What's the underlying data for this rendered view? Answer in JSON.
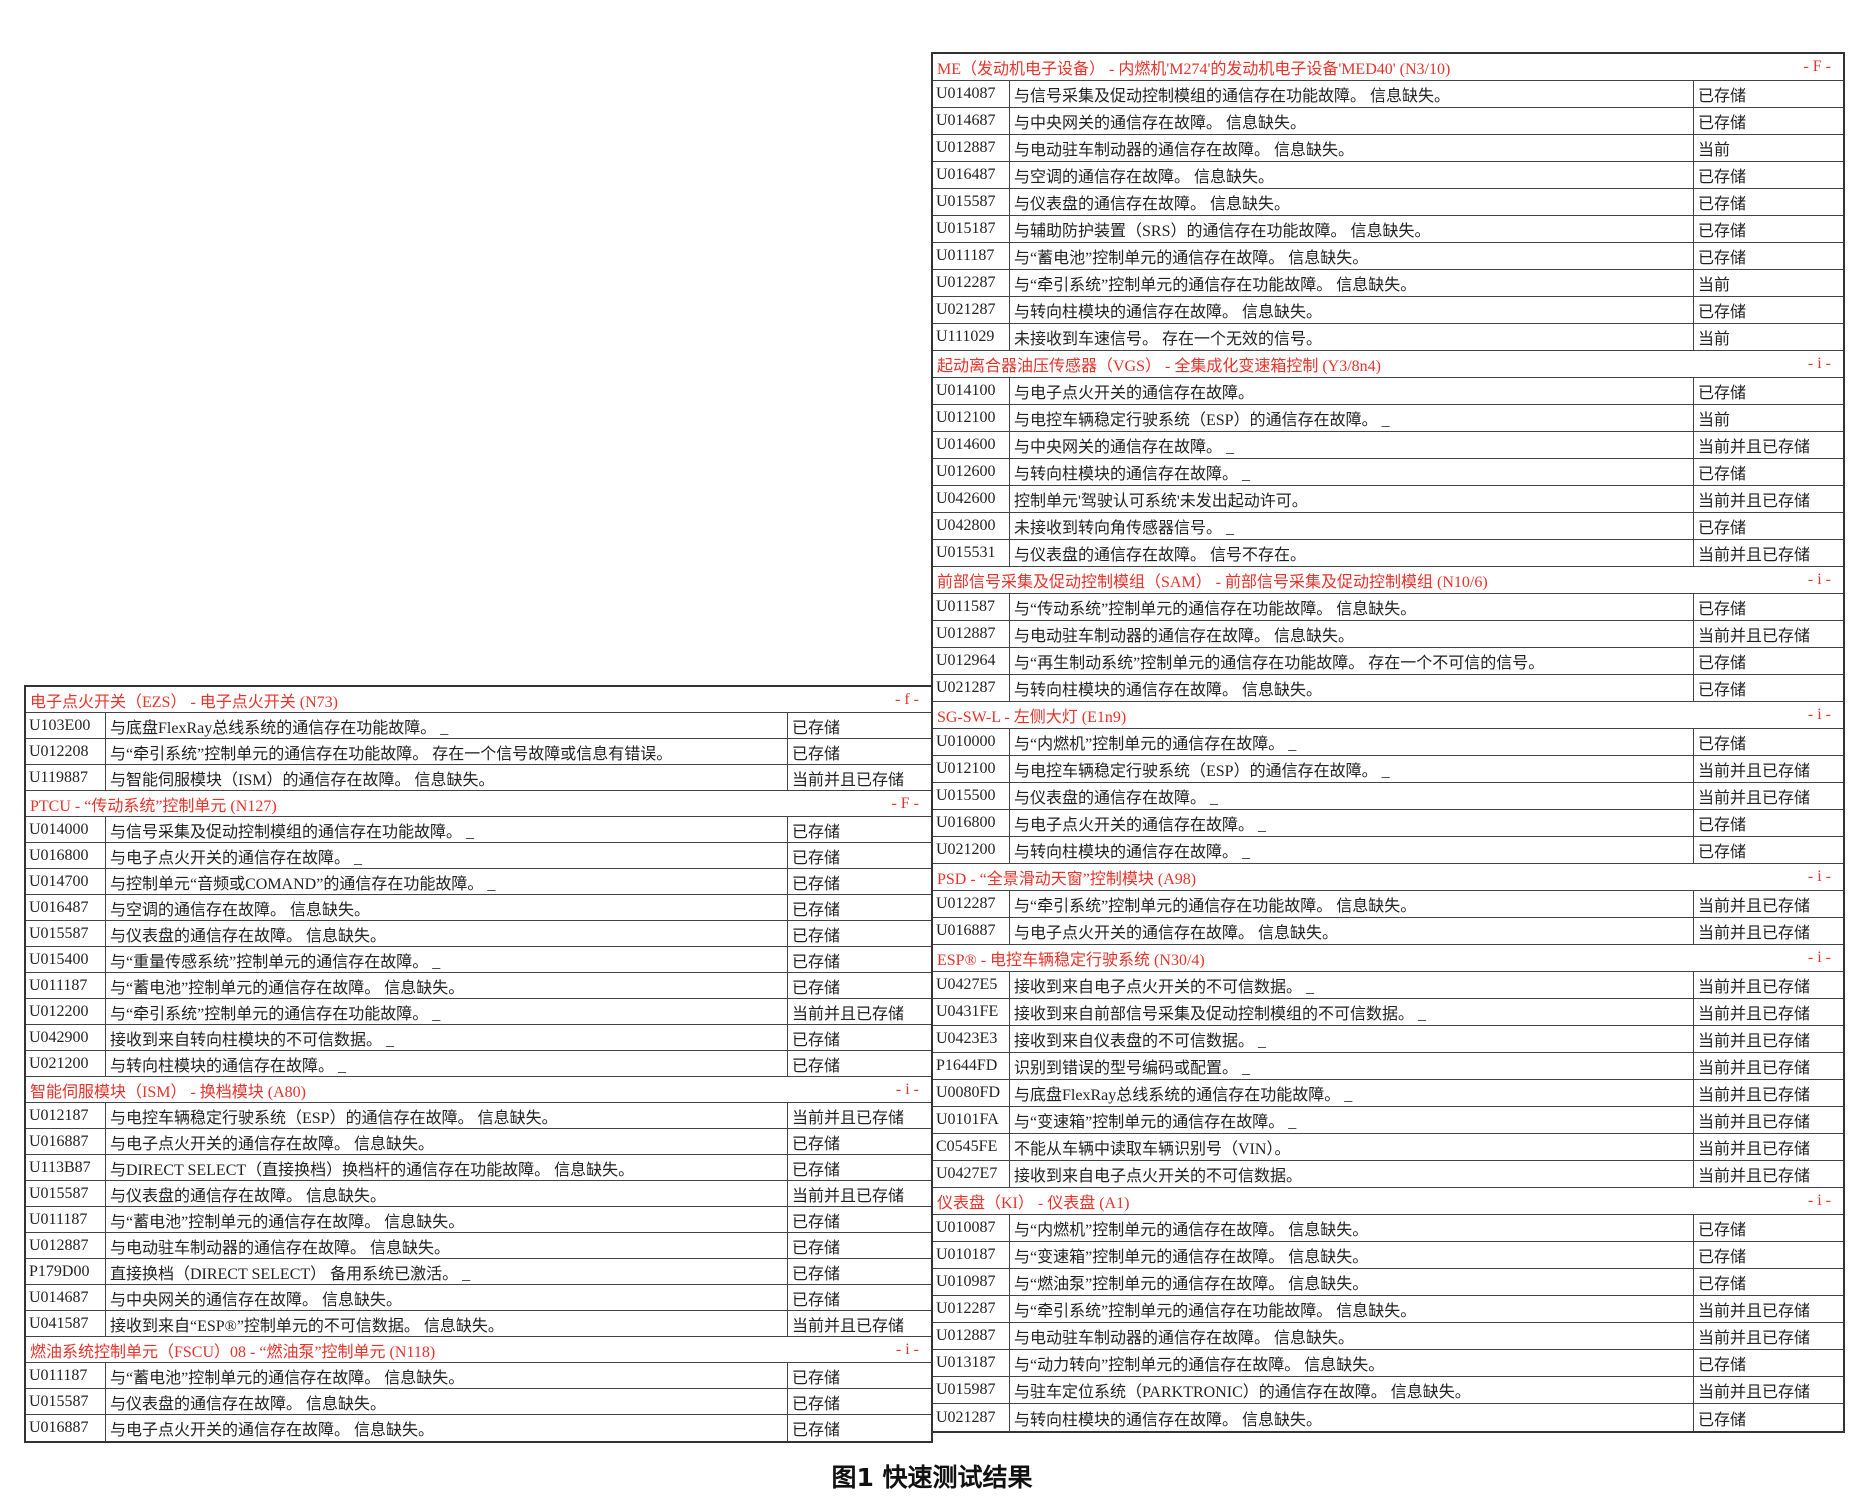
{
  "left": {
    "sections": [
      {
        "title": "电子点火开关（EZS） - 电子点火开关 (N73)",
        "flag": "- f -",
        "rows": [
          [
            "U103E00",
            "与底盘FlexRay总线系统的通信存在功能故障。 _",
            "已存储"
          ],
          [
            "U012208",
            "与“牵引系统”控制单元的通信存在功能故障。 存在一个信号故障或信息有错误。",
            "已存储"
          ],
          [
            "U119887",
            "与智能伺服模块（ISM）的通信存在故障。 信息缺失。",
            "当前并且已存储"
          ]
        ]
      },
      {
        "title": "PTCU - “传动系统”控制单元 (N127)",
        "flag": "- F -",
        "rows": [
          [
            "U014000",
            "与信号采集及促动控制模组的通信存在功能故障。 _",
            "已存储"
          ],
          [
            "U016800",
            "与电子点火开关的通信存在故障。 _",
            "已存储"
          ],
          [
            "U014700",
            "与控制单元“音频或COMAND”的通信存在功能故障。 _",
            "已存储"
          ],
          [
            "U016487",
            "与空调的通信存在故障。 信息缺失。",
            "已存储"
          ],
          [
            "U015587",
            "与仪表盘的通信存在故障。 信息缺失。",
            "已存储"
          ],
          [
            "U015400",
            "与“重量传感系统”控制单元的通信存在故障。 _",
            "已存储"
          ],
          [
            "U011187",
            "与“蓄电池”控制单元的通信存在故障。 信息缺失。",
            "已存储"
          ],
          [
            "U012200",
            "与“牵引系统”控制单元的通信存在功能故障。 _",
            "当前并且已存储"
          ],
          [
            "U042900",
            "接收到来自转向柱模块的不可信数据。 _",
            "已存储"
          ],
          [
            "U021200",
            "与转向柱模块的通信存在故障。 _",
            "已存储"
          ]
        ]
      },
      {
        "title": "智能伺服模块（ISM） - 换档模块 (A80)",
        "flag": "- i -",
        "rows": [
          [
            "U012187",
            "与电控车辆稳定行驶系统（ESP）的通信存在故障。 信息缺失。",
            "当前并且已存储"
          ],
          [
            "U016887",
            "与电子点火开关的通信存在故障。 信息缺失。",
            "已存储"
          ],
          [
            "U113B87",
            "与DIRECT SELECT（直接换档）换档杆的通信存在功能故障。 信息缺失。",
            "已存储"
          ],
          [
            "U015587",
            "与仪表盘的通信存在故障。 信息缺失。",
            "当前并且已存储"
          ],
          [
            "U011187",
            "与“蓄电池”控制单元的通信存在故障。 信息缺失。",
            "已存储"
          ],
          [
            "U012887",
            "与电动驻车制动器的通信存在故障。 信息缺失。",
            "已存储"
          ],
          [
            "P179D00",
            "直接换档（DIRECT SELECT） 备用系统已激活。 _",
            "已存储"
          ],
          [
            "U014687",
            "与中央网关的通信存在故障。 信息缺失。",
            "已存储"
          ],
          [
            "U041587",
            "接收到来自“ESP®”控制单元的不可信数据。 信息缺失。",
            "当前并且已存储"
          ]
        ]
      },
      {
        "title": "燃油系统控制单元（FSCU）08 - “燃油泵”控制单元 (N118)",
        "flag": "- i -",
        "rows": [
          [
            "U011187",
            "与“蓄电池”控制单元的通信存在故障。 信息缺失。",
            "已存储"
          ],
          [
            "U015587",
            "与仪表盘的通信存在故障。 信息缺失。",
            "已存储"
          ],
          [
            "U016887",
            "与电子点火开关的通信存在故障。 信息缺失。",
            "已存储"
          ]
        ]
      }
    ]
  },
  "right": {
    "sections": [
      {
        "title": "ME（发动机电子设备） - 内燃机'M274'的发动机电子设备'MED40' (N3/10)",
        "flag": "- F -",
        "rows": [
          [
            "U014087",
            "与信号采集及促动控制模组的通信存在功能故障。 信息缺失。",
            "已存储"
          ],
          [
            "U014687",
            "与中央网关的通信存在故障。 信息缺失。",
            "已存储"
          ],
          [
            "U012887",
            "与电动驻车制动器的通信存在故障。 信息缺失。",
            "当前"
          ],
          [
            "U016487",
            "与空调的通信存在故障。 信息缺失。",
            "已存储"
          ],
          [
            "U015587",
            "与仪表盘的通信存在故障。 信息缺失。",
            "已存储"
          ],
          [
            "U015187",
            "与辅助防护装置（SRS）的通信存在功能故障。 信息缺失。",
            "已存储"
          ],
          [
            "U011187",
            "与“蓄电池”控制单元的通信存在故障。 信息缺失。",
            "已存储"
          ],
          [
            "U012287",
            "与“牵引系统”控制单元的通信存在功能故障。 信息缺失。",
            "当前"
          ],
          [
            "U021287",
            "与转向柱模块的通信存在故障。 信息缺失。",
            "已存储"
          ],
          [
            "U111029",
            "未接收到车速信号。 存在一个无效的信号。",
            "当前"
          ]
        ]
      },
      {
        "title": "起动离合器油压传感器（VGS） - 全集成化变速箱控制 (Y3/8n4)",
        "flag": "- i -",
        "rows": [
          [
            "U014100",
            "与电子点火开关的通信存在故障。",
            "已存储"
          ],
          [
            "U012100",
            "与电控车辆稳定行驶系统（ESP）的通信存在故障。 _",
            "当前"
          ],
          [
            "U014600",
            "与中央网关的通信存在故障。 _",
            "当前并且已存储"
          ],
          [
            "U012600",
            "与转向柱模块的通信存在故障。 _",
            "已存储"
          ],
          [
            "U042600",
            "控制单元'驾驶认可系统'未发出起动许可。",
            "当前并且已存储"
          ],
          [
            "U042800",
            "未接收到转向角传感器信号。 _",
            "已存储"
          ],
          [
            "U015531",
            "与仪表盘的通信存在故障。 信号不存在。",
            "当前并且已存储"
          ]
        ]
      },
      {
        "title": "前部信号采集及促动控制模组（SAM） - 前部信号采集及促动控制模组 (N10/6)",
        "flag": "- i -",
        "rows": [
          [
            "U011587",
            "与“传动系统”控制单元的通信存在功能故障。 信息缺失。",
            "已存储"
          ],
          [
            "U012887",
            "与电动驻车制动器的通信存在故障。 信息缺失。",
            "当前并且已存储"
          ],
          [
            "U012964",
            "与“再生制动系统”控制单元的通信存在功能故障。 存在一个不可信的信号。",
            "已存储"
          ],
          [
            "U021287",
            "与转向柱模块的通信存在故障。 信息缺失。",
            "已存储"
          ]
        ]
      },
      {
        "title": "SG-SW-L - 左侧大灯 (E1n9)",
        "flag": "- i -",
        "rows": [
          [
            "U010000",
            "与“内燃机”控制单元的通信存在故障。 _",
            "已存储"
          ],
          [
            "U012100",
            "与电控车辆稳定行驶系统（ESP）的通信存在故障。 _",
            "当前并且已存储"
          ],
          [
            "U015500",
            "与仪表盘的通信存在故障。 _",
            "当前并且已存储"
          ],
          [
            "U016800",
            "与电子点火开关的通信存在故障。 _",
            "已存储"
          ],
          [
            "U021200",
            "与转向柱模块的通信存在故障。 _",
            "已存储"
          ]
        ]
      },
      {
        "title": "PSD - “全景滑动天窗”控制模块 (A98)",
        "flag": "- i -",
        "rows": [
          [
            "U012287",
            "与“牵引系统”控制单元的通信存在功能故障。 信息缺失。",
            "当前并且已存储"
          ],
          [
            "U016887",
            "与电子点火开关的通信存在故障。 信息缺失。",
            "当前并且已存储"
          ]
        ]
      },
      {
        "title": "ESP® - 电控车辆稳定行驶系统 (N30/4)",
        "flag": "- i -",
        "rows": [
          [
            "U0427E5",
            "接收到来自电子点火开关的不可信数据。 _",
            "当前并且已存储"
          ],
          [
            "U0431FE",
            "接收到来自前部信号采集及促动控制模组的不可信数据。 _",
            "当前并且已存储"
          ],
          [
            "U0423E3",
            "接收到来自仪表盘的不可信数据。 _",
            "当前并且已存储"
          ],
          [
            "P1644FD",
            "识别到错误的型号编码或配置。 _",
            "当前并且已存储"
          ],
          [
            "U0080FD",
            "与底盘FlexRay总线系统的通信存在功能故障。 _",
            "当前并且已存储"
          ],
          [
            "U0101FA",
            "与“变速箱”控制单元的通信存在故障。 _",
            "当前并且已存储"
          ],
          [
            "C0545FE",
            "不能从车辆中读取车辆识别号（VIN）。",
            "当前并且已存储"
          ],
          [
            "U0427E7",
            "接收到来自电子点火开关的不可信数据。",
            "当前并且已存储"
          ]
        ]
      },
      {
        "title": "仪表盘（KI） - 仪表盘 (A1)",
        "flag": "- i -",
        "rows": [
          [
            "U010087",
            "与“内燃机”控制单元的通信存在故障。 信息缺失。",
            "已存储"
          ],
          [
            "U010187",
            "与“变速箱”控制单元的通信存在故障。 信息缺失。",
            "已存储"
          ],
          [
            "U010987",
            "与“燃油泵”控制单元的通信存在故障。 信息缺失。",
            "已存储"
          ],
          [
            "U012287",
            "与“牵引系统”控制单元的通信存在功能故障。 信息缺失。",
            "当前并且已存储"
          ],
          [
            "U012887",
            "与电动驻车制动器的通信存在故障。 信息缺失。",
            "当前并且已存储"
          ],
          [
            "U013187",
            "与“动力转向”控制单元的通信存在故障。 信息缺失。",
            "已存储"
          ],
          [
            "U015987",
            "与驻车定位系统（PARKTRONIC）的通信存在故障。 信息缺失。",
            "当前并且已存储"
          ],
          [
            "U021287",
            "与转向柱模块的通信存在故障。 信息缺失。",
            "已存储"
          ]
        ]
      }
    ]
  },
  "caption": "图1 快速测试结果"
}
